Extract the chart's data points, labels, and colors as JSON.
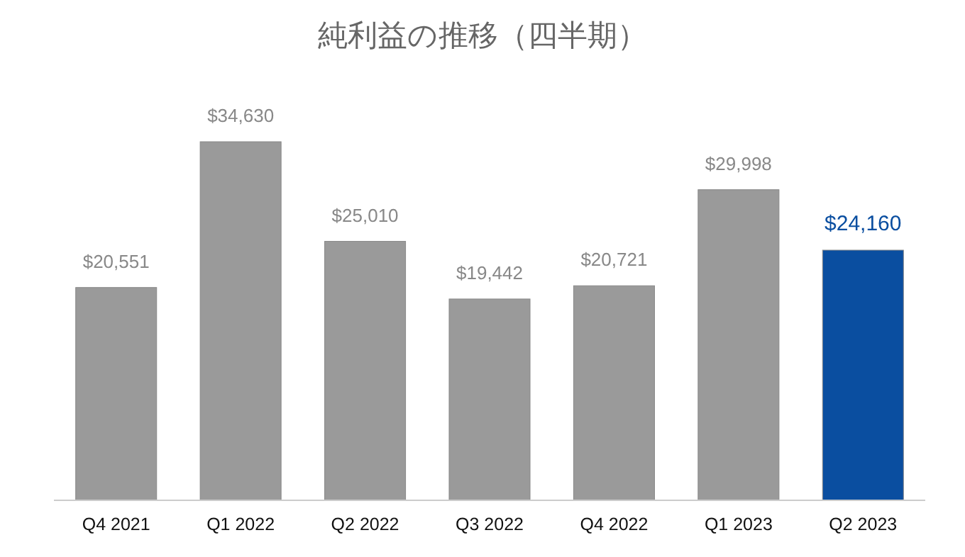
{
  "chart_data": {
    "type": "bar",
    "title": "純利益の推移（四半期）",
    "categories": [
      "Q4 2021",
      "Q1 2022",
      "Q2 2022",
      "Q3 2022",
      "Q4 2022",
      "Q1 2023",
      "Q2 2023"
    ],
    "values": [
      20551,
      34630,
      25010,
      19442,
      20721,
      29998,
      24160
    ],
    "colors": [
      "#9a9a9a",
      "#9a9a9a",
      "#9a9a9a",
      "#9a9a9a",
      "#9a9a9a",
      "#9a9a9a",
      "#0a4ea0"
    ],
    "value_labels": [
      "$20,551",
      "$34,630",
      "$25,010",
      "$19,442",
      "$20,721",
      "$29,998",
      "$24,160"
    ]
  }
}
